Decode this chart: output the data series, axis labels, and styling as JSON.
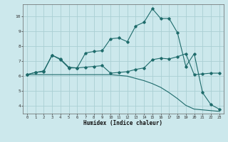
{
  "xlabel": "Humidex (Indice chaleur)",
  "background_color": "#cce8ec",
  "grid_color": "#aacfd4",
  "line_color": "#1e6b6b",
  "x_values": [
    0,
    1,
    2,
    3,
    4,
    5,
    6,
    7,
    8,
    9,
    10,
    11,
    12,
    13,
    14,
    15,
    16,
    17,
    18,
    19,
    20,
    21,
    22,
    23
  ],
  "series1": [
    6.1,
    6.25,
    6.3,
    7.4,
    7.1,
    6.55,
    6.55,
    7.55,
    7.65,
    7.7,
    8.5,
    8.55,
    8.3,
    9.35,
    9.6,
    10.5,
    9.85,
    9.85,
    8.9,
    6.65,
    7.5,
    4.9,
    4.1,
    3.8
  ],
  "series2": [
    6.1,
    6.25,
    6.35,
    7.4,
    7.15,
    6.6,
    6.55,
    6.6,
    6.65,
    6.7,
    6.2,
    6.25,
    6.3,
    6.45,
    6.55,
    7.1,
    7.2,
    7.15,
    7.3,
    7.5,
    6.1,
    6.15,
    6.2,
    6.2
  ],
  "series3": [
    6.1,
    6.1,
    6.1,
    6.1,
    6.1,
    6.1,
    6.1,
    6.1,
    6.1,
    6.1,
    6.1,
    6.05,
    6.0,
    5.85,
    5.7,
    5.5,
    5.25,
    4.9,
    4.5,
    4.05,
    3.8,
    3.75,
    3.7,
    3.65
  ],
  "ylim": [
    3.5,
    10.8
  ],
  "xlim": [
    -0.5,
    23.5
  ],
  "yticks": [
    4,
    5,
    6,
    7,
    8,
    9,
    10
  ],
  "xticks": [
    0,
    1,
    2,
    3,
    4,
    5,
    6,
    7,
    8,
    9,
    10,
    11,
    12,
    13,
    14,
    15,
    16,
    17,
    18,
    19,
    20,
    21,
    22,
    23
  ]
}
